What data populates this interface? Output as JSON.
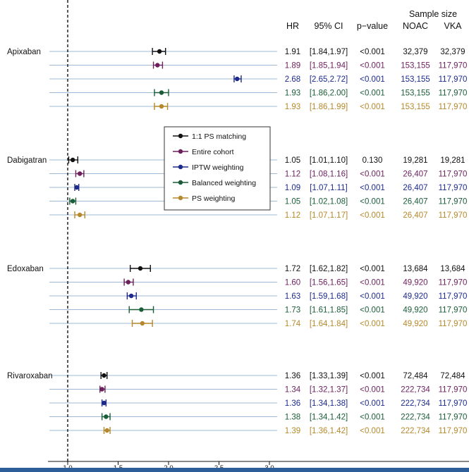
{
  "colors": {
    "ps_matching": "#111111",
    "entire_cohort": "#6b1f5c",
    "iptw": "#1c2a8c",
    "balanced": "#1a5c38",
    "ps_weighting": "#b5882b",
    "row_line": "#9fb8d6"
  },
  "chart_data": {
    "type": "forest",
    "xlabel": "",
    "x_ticks": [
      "1.0",
      "1.5",
      "2.0",
      "2.5",
      "3.0"
    ],
    "x_tick_values": [
      1.0,
      1.5,
      2.0,
      2.5,
      3.0
    ],
    "xlim": [
      0.93,
      3.0
    ],
    "reference_line": 1.0,
    "headers": {
      "sample_size": "Sample size",
      "hr": "HR",
      "ci": "95% CI",
      "p": "p−value",
      "noac": "NOAC",
      "vka": "VKA"
    },
    "legend": [
      {
        "name": "1:1 PS matching",
        "color": "#111111"
      },
      {
        "name": "Entire cohort",
        "color": "#6b1f5c"
      },
      {
        "name": "IPTW weighting",
        "color": "#1c2a8c"
      },
      {
        "name": "Balanced weighting",
        "color": "#1a5c38"
      },
      {
        "name": "PS weighting",
        "color": "#b5882b"
      }
    ],
    "groups": [
      {
        "drug": "Apixaban",
        "rows": [
          {
            "hr": 1.91,
            "lo": 1.84,
            "hi": 1.97,
            "hr_text": "1.91",
            "ci": "[1.84,1.97]",
            "p": "<0.001",
            "noac": "32,379",
            "vka": "32,379"
          },
          {
            "hr": 1.89,
            "lo": 1.85,
            "hi": 1.94,
            "hr_text": "1.89",
            "ci": "[1.85,1.94]",
            "p": "<0.001",
            "noac": "153,155",
            "vka": "117,970"
          },
          {
            "hr": 2.68,
            "lo": 2.65,
            "hi": 2.72,
            "hr_text": "2.68",
            "ci": "[2.65,2.72]",
            "p": "<0.001",
            "noac": "153,155",
            "vka": "117,970"
          },
          {
            "hr": 1.93,
            "lo": 1.86,
            "hi": 2.0,
            "hr_text": "1.93",
            "ci": "[1.86,2.00]",
            "p": "<0.001",
            "noac": "153,155",
            "vka": "117,970"
          },
          {
            "hr": 1.93,
            "lo": 1.86,
            "hi": 1.99,
            "hr_text": "1.93",
            "ci": "[1.86,1.99]",
            "p": "<0.001",
            "noac": "153,155",
            "vka": "117,970"
          }
        ]
      },
      {
        "drug": "Dabigatran",
        "rows": [
          {
            "hr": 1.05,
            "lo": 1.01,
            "hi": 1.1,
            "hr_text": "1.05",
            "ci": "[1.01,1.10]",
            "p": "0.130",
            "noac": "19,281",
            "vka": "19,281"
          },
          {
            "hr": 1.12,
            "lo": 1.08,
            "hi": 1.16,
            "hr_text": "1.12",
            "ci": "[1.08,1.16]",
            "p": "<0.001",
            "noac": "26,407",
            "vka": "117,970"
          },
          {
            "hr": 1.09,
            "lo": 1.07,
            "hi": 1.11,
            "hr_text": "1.09",
            "ci": "[1.07,1.11]",
            "p": "<0.001",
            "noac": "26,407",
            "vka": "117,970"
          },
          {
            "hr": 1.05,
            "lo": 1.02,
            "hi": 1.08,
            "hr_text": "1.05",
            "ci": "[1.02,1.08]",
            "p": "<0.001",
            "noac": "26,407",
            "vka": "117,970"
          },
          {
            "hr": 1.12,
            "lo": 1.07,
            "hi": 1.17,
            "hr_text": "1.12",
            "ci": "[1.07,1.17]",
            "p": "<0.001",
            "noac": "26,407",
            "vka": "117,970"
          }
        ]
      },
      {
        "drug": "Edoxaban",
        "rows": [
          {
            "hr": 1.72,
            "lo": 1.62,
            "hi": 1.82,
            "hr_text": "1.72",
            "ci": "[1.62,1.82]",
            "p": "<0.001",
            "noac": "13,684",
            "vka": "13,684"
          },
          {
            "hr": 1.6,
            "lo": 1.56,
            "hi": 1.65,
            "hr_text": "1.60",
            "ci": "[1.56,1.65]",
            "p": "<0.001",
            "noac": "49,920",
            "vka": "117,970"
          },
          {
            "hr": 1.63,
            "lo": 1.59,
            "hi": 1.68,
            "hr_text": "1.63",
            "ci": "[1.59,1.68]",
            "p": "<0.001",
            "noac": "49,920",
            "vka": "117,970"
          },
          {
            "hr": 1.73,
            "lo": 1.61,
            "hi": 1.85,
            "hr_text": "1.73",
            "ci": "[1.61,1.85]",
            "p": "<0.001",
            "noac": "49,920",
            "vka": "117,970"
          },
          {
            "hr": 1.74,
            "lo": 1.64,
            "hi": 1.84,
            "hr_text": "1.74",
            "ci": "[1.64,1.84]",
            "p": "<0.001",
            "noac": "49,920",
            "vka": "117,970"
          }
        ]
      },
      {
        "drug": "Rivaroxaban",
        "rows": [
          {
            "hr": 1.36,
            "lo": 1.33,
            "hi": 1.39,
            "hr_text": "1.36",
            "ci": "[1.33,1.39]",
            "p": "<0.001",
            "noac": "72,484",
            "vka": "72,484"
          },
          {
            "hr": 1.34,
            "lo": 1.32,
            "hi": 1.37,
            "hr_text": "1.34",
            "ci": "[1.32,1.37]",
            "p": "<0.001",
            "noac": "222,734",
            "vka": "117,970"
          },
          {
            "hr": 1.36,
            "lo": 1.34,
            "hi": 1.38,
            "hr_text": "1.36",
            "ci": "[1.34,1.38]",
            "p": "<0.001",
            "noac": "222,734",
            "vka": "117,970"
          },
          {
            "hr": 1.38,
            "lo": 1.34,
            "hi": 1.42,
            "hr_text": "1.38",
            "ci": "[1.34,1.42]",
            "p": "<0.001",
            "noac": "222,734",
            "vka": "117,970"
          },
          {
            "hr": 1.39,
            "lo": 1.36,
            "hi": 1.42,
            "hr_text": "1.39",
            "ci": "[1.36,1.42]",
            "p": "<0.001",
            "noac": "222,734",
            "vka": "117,970"
          }
        ]
      }
    ]
  }
}
